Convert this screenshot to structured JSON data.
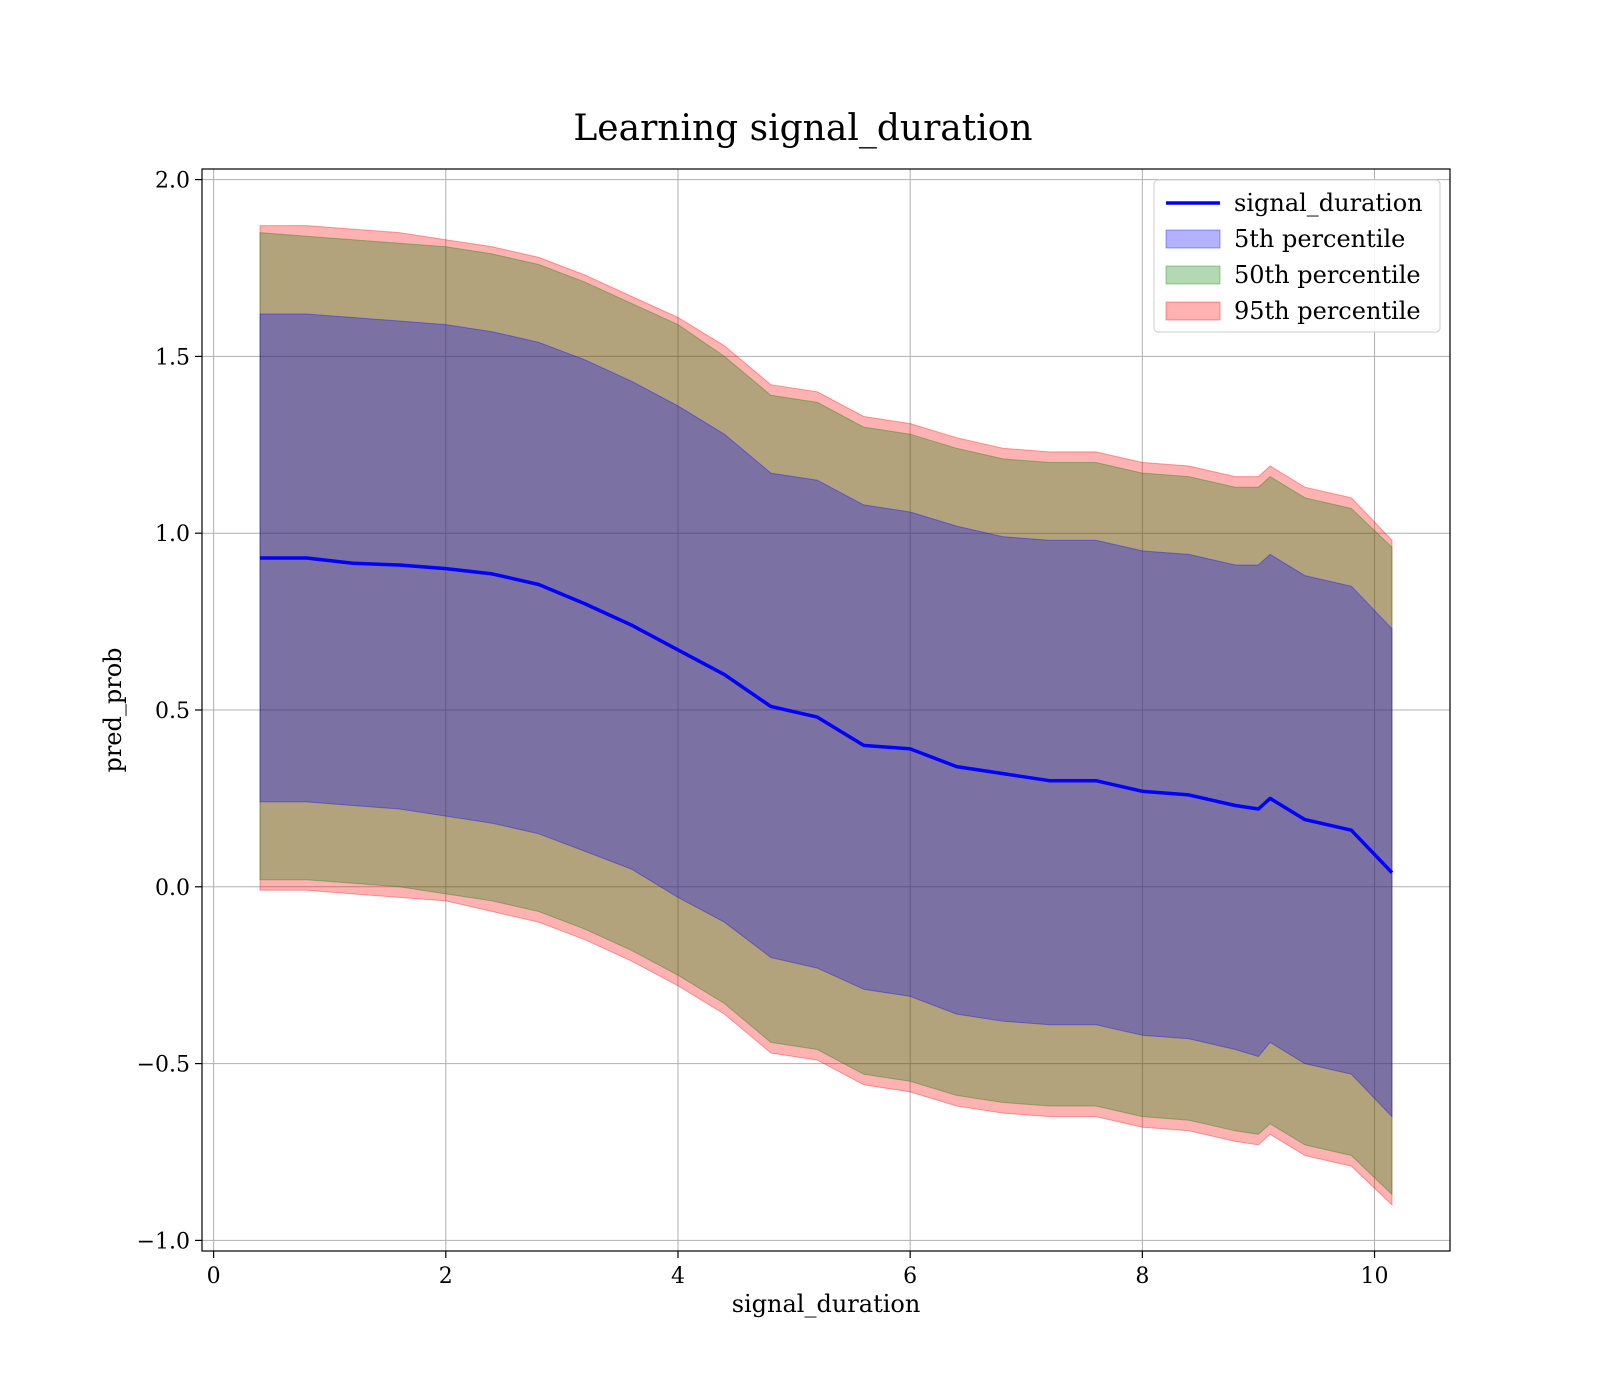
{
  "chart_data": {
    "type": "line",
    "title": "Learning signal_duration",
    "xlabel": "signal_duration",
    "ylabel": "pred_prob",
    "xlim": [
      -0.1,
      10.65
    ],
    "ylim": [
      -1.03,
      2.03
    ],
    "xticks": [
      0,
      2,
      4,
      6,
      8,
      10
    ],
    "xtick_labels": [
      "0",
      "2",
      "4",
      "6",
      "8",
      "10"
    ],
    "yticks": [
      -1.0,
      -0.5,
      0.0,
      0.5,
      1.0,
      1.5,
      2.0
    ],
    "ytick_labels": [
      "−1.0",
      "−0.5",
      "0.0",
      "0.5",
      "1.0",
      "1.5",
      "2.0"
    ],
    "grid": true,
    "legend_position": "top-right",
    "x": [
      0.4,
      0.8,
      1.2,
      1.6,
      2.0,
      2.4,
      2.8,
      3.2,
      3.6,
      4.0,
      4.4,
      4.8,
      5.2,
      5.6,
      6.0,
      6.4,
      6.8,
      7.2,
      7.6,
      8.0,
      8.4,
      8.8,
      9.0,
      9.1,
      9.4,
      9.8,
      10.15
    ],
    "series": [
      {
        "name": "signal_duration",
        "kind": "line",
        "color": "#0000ff",
        "values": [
          0.93,
          0.93,
          0.915,
          0.91,
          0.9,
          0.885,
          0.855,
          0.8,
          0.74,
          0.67,
          0.6,
          0.51,
          0.48,
          0.4,
          0.39,
          0.34,
          0.32,
          0.3,
          0.3,
          0.27,
          0.26,
          0.23,
          0.22,
          0.25,
          0.19,
          0.16,
          0.04
        ]
      },
      {
        "name": "5th percentile",
        "kind": "band",
        "color": "#0000ff",
        "lower": [
          0.24,
          0.24,
          0.23,
          0.22,
          0.2,
          0.18,
          0.15,
          0.1,
          0.05,
          -0.03,
          -0.1,
          -0.2,
          -0.23,
          -0.29,
          -0.31,
          -0.36,
          -0.38,
          -0.39,
          -0.39,
          -0.42,
          -0.43,
          -0.46,
          -0.48,
          -0.44,
          -0.5,
          -0.53,
          -0.65
        ],
        "upper": [
          1.62,
          1.62,
          1.61,
          1.6,
          1.59,
          1.57,
          1.54,
          1.49,
          1.43,
          1.36,
          1.28,
          1.17,
          1.15,
          1.08,
          1.06,
          1.02,
          0.99,
          0.98,
          0.98,
          0.95,
          0.94,
          0.91,
          0.91,
          0.94,
          0.88,
          0.85,
          0.73
        ]
      },
      {
        "name": "50th percentile",
        "kind": "band",
        "color": "#008000",
        "lower": [
          0.02,
          0.02,
          0.01,
          0.0,
          -0.02,
          -0.04,
          -0.07,
          -0.12,
          -0.18,
          -0.25,
          -0.33,
          -0.44,
          -0.46,
          -0.53,
          -0.55,
          -0.59,
          -0.61,
          -0.62,
          -0.62,
          -0.65,
          -0.66,
          -0.69,
          -0.7,
          -0.67,
          -0.73,
          -0.76,
          -0.87
        ],
        "upper": [
          1.85,
          1.84,
          1.83,
          1.82,
          1.81,
          1.79,
          1.76,
          1.71,
          1.65,
          1.59,
          1.5,
          1.39,
          1.37,
          1.3,
          1.28,
          1.24,
          1.21,
          1.2,
          1.2,
          1.17,
          1.16,
          1.13,
          1.13,
          1.16,
          1.1,
          1.07,
          0.96
        ]
      },
      {
        "name": "95th percentile",
        "kind": "band",
        "color": "#ff0000",
        "lower": [
          -0.01,
          -0.01,
          -0.02,
          -0.03,
          -0.04,
          -0.07,
          -0.1,
          -0.15,
          -0.21,
          -0.28,
          -0.36,
          -0.47,
          -0.49,
          -0.56,
          -0.58,
          -0.62,
          -0.64,
          -0.65,
          -0.65,
          -0.68,
          -0.69,
          -0.72,
          -0.73,
          -0.7,
          -0.76,
          -0.79,
          -0.9
        ],
        "upper": [
          1.87,
          1.87,
          1.86,
          1.85,
          1.83,
          1.81,
          1.78,
          1.73,
          1.67,
          1.61,
          1.53,
          1.42,
          1.4,
          1.33,
          1.31,
          1.27,
          1.24,
          1.23,
          1.23,
          1.2,
          1.19,
          1.16,
          1.16,
          1.19,
          1.13,
          1.1,
          0.98
        ]
      }
    ]
  }
}
